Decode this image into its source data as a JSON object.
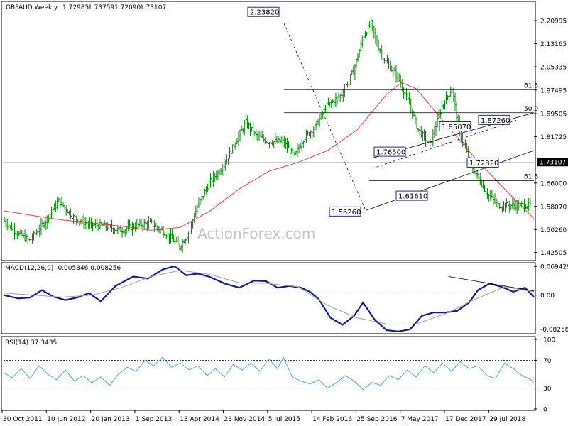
{
  "chart_data": [
    {
      "type": "candlestick",
      "panel": "price",
      "title": "GBPAUD,Weekly",
      "ohlc": {
        "open": "1.72985",
        "high": "1.73759",
        "low": "1.72090",
        "close": "1.73107"
      },
      "y_ticks": [
        "2.20995",
        "2.13165",
        "2.05335",
        "1.97495",
        "1.89505",
        "1.81725",
        "1.73107",
        "1.66000",
        "1.58070",
        "1.50260",
        "1.42505"
      ],
      "y_range": [
        1.4,
        2.27
      ],
      "x_ticks": [
        "30 Oct 2011",
        "10 Jun 2012",
        "20 Jan 2013",
        "1 Sep 2013",
        "13 Apr 2014",
        "23 Nov 2014",
        "5 Jul 2015",
        "14 Feb 2016",
        "25 Sep 2016",
        "7 May 2017",
        "17 Dec 2017",
        "29 Jul 2018"
      ],
      "current_price": 1.73107,
      "current_price_label": "1.73107",
      "bar_count": 360,
      "price_path": [
        [
          0,
          1.535
        ],
        [
          10,
          1.49
        ],
        [
          18,
          1.465
        ],
        [
          28,
          1.525
        ],
        [
          38,
          1.6
        ],
        [
          48,
          1.545
        ],
        [
          58,
          1.52
        ],
        [
          68,
          1.515
        ],
        [
          80,
          1.5
        ],
        [
          90,
          1.515
        ],
        [
          100,
          1.525
        ],
        [
          112,
          1.485
        ],
        [
          120,
          1.445
        ],
        [
          126,
          1.49
        ],
        [
          132,
          1.58
        ],
        [
          140,
          1.66
        ],
        [
          150,
          1.72
        ],
        [
          158,
          1.8
        ],
        [
          165,
          1.865
        ],
        [
          172,
          1.82
        ],
        [
          180,
          1.8
        ],
        [
          190,
          1.8
        ],
        [
          198,
          1.75
        ],
        [
          204,
          1.81
        ],
        [
          212,
          1.85
        ],
        [
          220,
          1.92
        ],
        [
          230,
          1.96
        ],
        [
          238,
          2.04
        ],
        [
          245,
          2.16
        ],
        [
          250,
          2.2
        ],
        [
          254,
          2.13
        ],
        [
          260,
          2.07
        ],
        [
          268,
          2.02
        ],
        [
          275,
          1.94
        ],
        [
          282,
          1.84
        ],
        [
          290,
          1.79
        ],
        [
          298,
          1.92
        ],
        [
          305,
          1.98
        ],
        [
          310,
          1.83
        ],
        [
          318,
          1.72
        ],
        [
          328,
          1.63
        ],
        [
          336,
          1.585
        ]
      ],
      "lines": [
        {
          "name": "sma",
          "points": [
            [
              0,
              1.566
            ],
            [
              20,
              1.55
            ],
            [
              40,
              1.535
            ],
            [
              60,
              1.525
            ],
            [
              80,
              1.514
            ],
            [
              100,
              1.5
            ],
            [
              120,
              1.51
            ],
            [
              140,
              1.565
            ],
            [
              160,
              1.64
            ],
            [
              180,
              1.7
            ],
            [
              200,
              1.73
            ],
            [
              220,
              1.77
            ],
            [
              240,
              1.84
            ],
            [
              260,
              1.96
            ],
            [
              270,
              2.0
            ],
            [
              280,
              1.98
            ],
            [
              290,
              1.92
            ],
            [
              300,
              1.86
            ],
            [
              320,
              1.745
            ],
            [
              340,
              1.64
            ],
            [
              360,
              1.54
            ]
          ]
        }
      ]
    },
    {
      "type": "line",
      "panel": "macd",
      "title": "MACD(12,26,9) -0.005346 0.008256",
      "y_ticks": [
        "0.069429",
        "0.00",
        "-0.082582"
      ],
      "y_range": [
        -0.09,
        0.075
      ],
      "x_count": 360,
      "series": [
        {
          "name": "macd",
          "points": [
            [
              0,
              0.0
            ],
            [
              10,
              -0.008
            ],
            [
              18,
              -0.006
            ],
            [
              26,
              0.012
            ],
            [
              34,
              -0.004
            ],
            [
              42,
              -0.012
            ],
            [
              50,
              -0.006
            ],
            [
              58,
              0.005
            ],
            [
              66,
              -0.015
            ],
            [
              76,
              0.022
            ],
            [
              88,
              0.045
            ],
            [
              98,
              0.04
            ],
            [
              108,
              0.062
            ],
            [
              116,
              0.07
            ],
            [
              124,
              0.048
            ],
            [
              132,
              0.052
            ],
            [
              140,
              0.044
            ],
            [
              150,
              0.028
            ],
            [
              160,
              0.018
            ],
            [
              170,
              0.035
            ],
            [
              178,
              0.034
            ],
            [
              186,
              0.018
            ],
            [
              194,
              0.022
            ],
            [
              202,
              0.018
            ],
            [
              208,
              0.008
            ],
            [
              214,
              -0.01
            ],
            [
              222,
              -0.055
            ],
            [
              230,
              -0.072
            ],
            [
              238,
              -0.05
            ],
            [
              244,
              -0.018
            ],
            [
              252,
              -0.06
            ],
            [
              260,
              -0.085
            ],
            [
              268,
              -0.088
            ],
            [
              276,
              -0.083
            ],
            [
              284,
              -0.05
            ],
            [
              292,
              -0.042
            ],
            [
              300,
              -0.042
            ],
            [
              308,
              -0.038
            ],
            [
              316,
              -0.018
            ],
            [
              322,
              0.012
            ],
            [
              330,
              0.028
            ],
            [
              338,
              0.02
            ],
            [
              346,
              0.008
            ],
            [
              354,
              0.018
            ],
            [
              360,
              -0.005
            ]
          ]
        },
        {
          "name": "signal",
          "points": [
            [
              0,
              0.005
            ],
            [
              20,
              0.0
            ],
            [
              40,
              -0.005
            ],
            [
              60,
              0.0
            ],
            [
              80,
              0.018
            ],
            [
              100,
              0.045
            ],
            [
              120,
              0.06
            ],
            [
              140,
              0.05
            ],
            [
              160,
              0.03
            ],
            [
              180,
              0.028
            ],
            [
              200,
              0.02
            ],
            [
              220,
              -0.025
            ],
            [
              240,
              -0.055
            ],
            [
              260,
              -0.07
            ],
            [
              280,
              -0.07
            ],
            [
              300,
              -0.045
            ],
            [
              320,
              -0.01
            ],
            [
              340,
              0.02
            ],
            [
              360,
              0.008
            ]
          ]
        }
      ]
    },
    {
      "type": "line",
      "panel": "rsi",
      "title": "RSI(14) 37.3435",
      "y_ticks": [
        "100",
        "70",
        "30",
        "0"
      ],
      "y_range": [
        0,
        100
      ],
      "x_count": 360,
      "series": [
        {
          "name": "rsi",
          "points": [
            [
              0,
              52
            ],
            [
              6,
              45
            ],
            [
              12,
              58
            ],
            [
              18,
              44
            ],
            [
              24,
              62
            ],
            [
              30,
              50
            ],
            [
              36,
              42
            ],
            [
              42,
              56
            ],
            [
              48,
              40
            ],
            [
              54,
              48
            ],
            [
              60,
              38
            ],
            [
              66,
              46
            ],
            [
              72,
              34
            ],
            [
              78,
              50
            ],
            [
              84,
              60
            ],
            [
              90,
              54
            ],
            [
              96,
              70
            ],
            [
              102,
              62
            ],
            [
              108,
              74
            ],
            [
              114,
              60
            ],
            [
              120,
              66
            ],
            [
              126,
              56
            ],
            [
              132,
              62
            ],
            [
              138,
              48
            ],
            [
              144,
              58
            ],
            [
              150,
              46
            ],
            [
              156,
              64
            ],
            [
              162,
              56
            ],
            [
              168,
              66
            ],
            [
              174,
              54
            ],
            [
              180,
              72
            ],
            [
              186,
              58
            ],
            [
              190,
              74
            ],
            [
              196,
              46
            ],
            [
              202,
              40
            ],
            [
              208,
              36
            ],
            [
              214,
              42
            ],
            [
              220,
              30
            ],
            [
              226,
              38
            ],
            [
              232,
              48
            ],
            [
              238,
              40
            ],
            [
              244,
              28
            ],
            [
              250,
              38
            ],
            [
              256,
              34
            ],
            [
              262,
              48
            ],
            [
              268,
              42
            ],
            [
              274,
              56
            ],
            [
              280,
              46
            ],
            [
              286,
              62
            ],
            [
              292,
              52
            ],
            [
              298,
              66
            ],
            [
              304,
              54
            ],
            [
              310,
              68
            ],
            [
              316,
              58
            ],
            [
              322,
              62
            ],
            [
              328,
              48
            ],
            [
              334,
              44
            ],
            [
              340,
              66
            ],
            [
              346,
              58
            ],
            [
              352,
              48
            ],
            [
              358,
              42
            ],
            [
              360,
              37
            ]
          ]
        }
      ]
    }
  ],
  "annotations": {
    "callouts": [
      "2.23820",
      "1.87260",
      "1.85070",
      "1.76500",
      "1.72820",
      "1.61610",
      "1.56260"
    ],
    "fib_labels": [
      "61.8",
      "50.0",
      "61.8"
    ]
  },
  "watermark": "ActionForex.com",
  "colors": {
    "candle": "#008000",
    "sma": "#e8384d",
    "macd": "#0e1e8f",
    "signal": "#a0a0a0",
    "rsi": "#4aa6d8",
    "callout_border": "#1a2a8a",
    "grid": "#000000"
  }
}
